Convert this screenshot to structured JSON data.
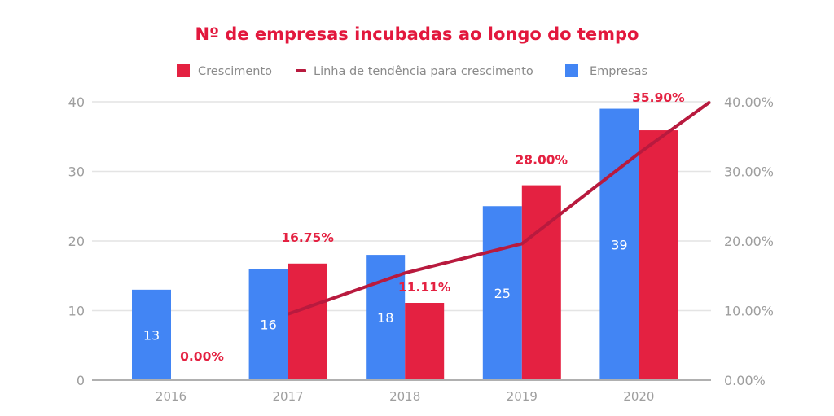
{
  "chart_data": {
    "type": "bar",
    "title": "Nº de empresas incubadas ao longo do tempo",
    "xlabel": "",
    "ylabel": "",
    "categories": [
      "2016",
      "2017",
      "2018",
      "2019",
      "2020"
    ],
    "series": [
      {
        "name": "Empresas",
        "type": "bar",
        "axis": "left",
        "color": "#4285f4",
        "values": [
          13,
          16,
          18,
          25,
          39
        ],
        "labels": [
          "13",
          "16",
          "18",
          "25",
          "39"
        ]
      },
      {
        "name": "Crescimento",
        "type": "bar",
        "axis": "right",
        "color": "#e42141",
        "values": [
          0.0,
          16.75,
          11.11,
          28.0,
          35.9
        ],
        "labels": [
          "0.00%",
          "16.75%",
          "11.11%",
          "28.00%",
          "35.90%"
        ]
      },
      {
        "name": "Linha de tendência para crescimento",
        "type": "line",
        "axis": "right",
        "color": "#b81a3e",
        "values": [
          null,
          9.5,
          15.4,
          19.6,
          32.6
        ],
        "end_value": 40.0
      }
    ],
    "legend": {
      "position": "top",
      "entries": [
        {
          "label": "Crescimento",
          "marker": "square",
          "color": "#e42141"
        },
        {
          "label": "Linha de tendência para crescimento",
          "marker": "line",
          "color": "#b81a3e"
        },
        {
          "label": "Empresas",
          "marker": "square",
          "color": "#4285f4"
        }
      ]
    },
    "y_left": {
      "ylim": [
        0,
        40
      ],
      "ticks": [
        0,
        10,
        20,
        30,
        40
      ],
      "tick_labels": [
        "0",
        "10",
        "20",
        "30",
        "40"
      ]
    },
    "y_right": {
      "ylim": [
        0,
        40
      ],
      "ticks": [
        0,
        10,
        20,
        30,
        40
      ],
      "tick_labels": [
        "0.00%",
        "10.00%",
        "20.00%",
        "30.00%",
        "40.00%"
      ]
    },
    "grid": true
  }
}
